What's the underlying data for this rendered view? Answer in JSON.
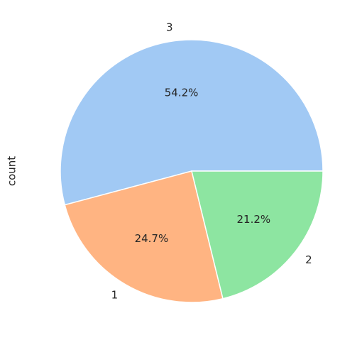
{
  "chart_data": {
    "type": "pie",
    "ylabel": "count",
    "categories": [
      "3",
      "1",
      "2"
    ],
    "values": [
      54.2,
      24.7,
      21.2
    ],
    "value_labels": [
      "54.2%",
      "24.7%",
      "21.2%"
    ],
    "colors": [
      "#a1c9f4",
      "#ffb482",
      "#8de5a1"
    ],
    "start_angle": 0,
    "counterclock": true
  }
}
